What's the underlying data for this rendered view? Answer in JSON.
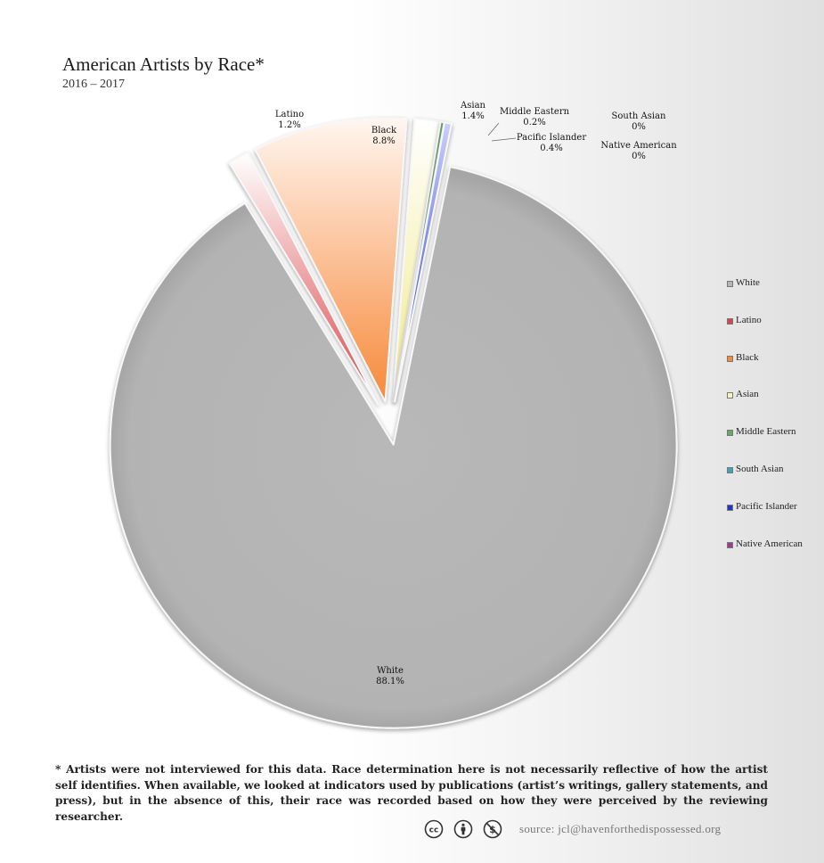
{
  "title": "American Artists by Race*",
  "subtitle": "2016 – 2017",
  "chart_data": {
    "type": "pie",
    "title": "American Artists by Race*",
    "subtitle": "2016 – 2017",
    "legend_position": "right",
    "slices": [
      {
        "label": "Black",
        "value": 8.8,
        "value_label": "8.8%",
        "color": "#f7893a"
      },
      {
        "label": "Asian",
        "value": 1.4,
        "value_label": "1.4%",
        "color": "#fbf5b5"
      },
      {
        "label": "Middle Eastern",
        "value": 0.2,
        "value_label": "0.2%",
        "color": "#6aa86a"
      },
      {
        "label": "South Asian",
        "value": 0,
        "value_label": "0%",
        "color": "#3aa6b9"
      },
      {
        "label": "Pacific Islander",
        "value": 0.4,
        "value_label": "0.4%",
        "color": "#1f35c8"
      },
      {
        "label": "Native American",
        "value": 0,
        "value_label": "0%",
        "color": "#9b3c92"
      },
      {
        "label": "White",
        "value": 88.1,
        "value_label": "88.1%",
        "color": "#b5b5b5"
      },
      {
        "label": "Latino",
        "value": 1.2,
        "value_label": "1.2%",
        "color": "#d9464a"
      }
    ]
  },
  "legend": [
    {
      "label": "White",
      "color": "#b5b5b5"
    },
    {
      "label": "Latino",
      "color": "#d9464a"
    },
    {
      "label": "Black",
      "color": "#f7893a"
    },
    {
      "label": "Asian",
      "color": "#fbf5b5"
    },
    {
      "label": "Middle Eastern",
      "color": "#6aa86a"
    },
    {
      "label": "South Asian",
      "color": "#3aa6b9"
    },
    {
      "label": "Pacific Islander",
      "color": "#1f35c8"
    },
    {
      "label": "Native American",
      "color": "#9b3c92"
    }
  ],
  "footnote": "* Artists were not interviewed for this data. Race determination here is not necessarily reflective of how the artist self identifies. When available, we looked at indicators used by publications (artist’s writings, gallery statements, and press), but in the absence of this, their race was recorded based on how they were perceived by the reviewing researcher.",
  "footer": {
    "icons": [
      "cc-icon",
      "attribution-person-icon",
      "noncommercial-icon"
    ],
    "source": "source: jcl@havenforthedispossessed.org"
  }
}
